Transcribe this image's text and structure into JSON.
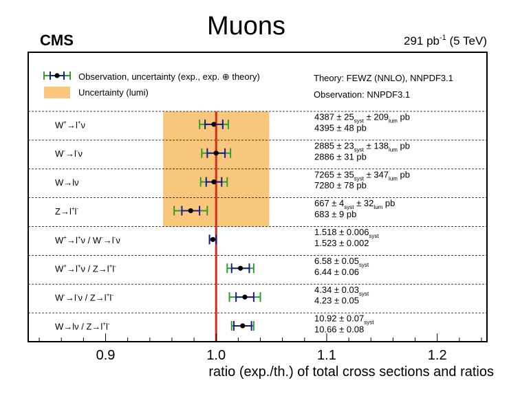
{
  "chart_data": {
    "type": "scatter",
    "title": "Muons",
    "experiment_label": "CMS",
    "lumi_prefix": "291 pb",
    "lumi_exp": "-1",
    "lumi_suffix": " (5 TeV)",
    "xlabel": "ratio (exp./th.) of total cross sections and ratios",
    "xlim": [
      0.83,
      1.245
    ],
    "xticks": [
      "0.9",
      "1.0",
      "1.1",
      "1.2"
    ],
    "xtick_values": [
      0.9,
      1.0,
      1.1,
      1.2
    ],
    "reference_line": 1.0,
    "legend": {
      "observation": "Observation, uncertainty (exp., exp. ⊕ theory)",
      "lumi": "Uncertainty (lumi)",
      "theory": "Theory: FEWZ (NNLO), NNPDF3.1",
      "observation_pdf": "Observation: NNPDF3.1"
    },
    "lumi_band": [
      0.952,
      1.048
    ],
    "lumi_band_rows": 4,
    "colors": {
      "lumi_band": "#f9c77b",
      "reference": "#d62a1e",
      "exp_error": "#1a1a8c",
      "total_error": "#2e9e2e",
      "point": "#000000"
    },
    "rows": [
      {
        "label": [
          {
            "t": "W"
          },
          {
            "t": "+",
            "s": "sup"
          },
          {
            "t": "→l"
          },
          {
            "t": "+",
            "s": "sup"
          },
          {
            "t": "ν"
          }
        ],
        "ratio": 0.998,
        "exp_err": 0.008,
        "tot_err": 0.013,
        "meas": [
          {
            "t": "4387 ± 25"
          },
          {
            "t": "syst",
            "s": "sub"
          },
          {
            "t": " ± 209"
          },
          {
            "t": "lum",
            "s": "sub"
          },
          {
            "t": " pb"
          }
        ],
        "theory": "4395 ± 48 pb"
      },
      {
        "label": [
          {
            "t": "W"
          },
          {
            "t": "-",
            "s": "sup"
          },
          {
            "t": "→l"
          },
          {
            "t": "-",
            "s": "sup"
          },
          {
            "t": "ν"
          }
        ],
        "ratio": 1.0,
        "exp_err": 0.008,
        "tot_err": 0.013,
        "meas": [
          {
            "t": "2885 ± 23"
          },
          {
            "t": "syst",
            "s": "sub"
          },
          {
            "t": " ± 138"
          },
          {
            "t": "lum",
            "s": "sub"
          },
          {
            "t": " pb"
          }
        ],
        "theory": "2886 ± 31 pb"
      },
      {
        "label": [
          {
            "t": "W→lν"
          }
        ],
        "ratio": 0.998,
        "exp_err": 0.007,
        "tot_err": 0.012,
        "meas": [
          {
            "t": "7265 ± 35"
          },
          {
            "t": "syst",
            "s": "sub"
          },
          {
            "t": " ± 347"
          },
          {
            "t": "lum",
            "s": "sub"
          },
          {
            "t": " pb"
          }
        ],
        "theory": "7280 ± 78 pb"
      },
      {
        "label": [
          {
            "t": "Z→l"
          },
          {
            "t": "+",
            "s": "sup"
          },
          {
            "t": "l"
          },
          {
            "t": "-",
            "s": "sup"
          }
        ],
        "ratio": 0.977,
        "exp_err": 0.008,
        "tot_err": 0.015,
        "meas": [
          {
            "t": "667 ± 4"
          },
          {
            "t": "syst",
            "s": "sub"
          },
          {
            "t": " ± 32"
          },
          {
            "t": "lum",
            "s": "sub"
          },
          {
            "t": " pb"
          }
        ],
        "theory": "683 ± 9 pb"
      },
      {
        "label": [
          {
            "t": "W"
          },
          {
            "t": "+",
            "s": "sup"
          },
          {
            "t": "→l"
          },
          {
            "t": "+",
            "s": "sup"
          },
          {
            "t": "ν / W"
          },
          {
            "t": "-",
            "s": "sup"
          },
          {
            "t": "→l"
          },
          {
            "t": "-",
            "s": "sup"
          },
          {
            "t": "ν"
          }
        ],
        "ratio": 0.997,
        "exp_err": 0.003,
        "tot_err": 0.003,
        "meas": [
          {
            "t": "1.518 ± 0.006"
          },
          {
            "t": "syst",
            "s": "sub"
          }
        ],
        "theory": "1.523 ± 0.002"
      },
      {
        "label": [
          {
            "t": "W"
          },
          {
            "t": "+",
            "s": "sup"
          },
          {
            "t": "→l"
          },
          {
            "t": "+",
            "s": "sup"
          },
          {
            "t": "ν / Z→l"
          },
          {
            "t": "+",
            "s": "sup"
          },
          {
            "t": "l"
          },
          {
            "t": "-",
            "s": "sup"
          }
        ],
        "ratio": 1.022,
        "exp_err": 0.008,
        "tot_err": 0.012,
        "meas": [
          {
            "t": "6.58 ± 0.05"
          },
          {
            "t": "syst",
            "s": "sub"
          }
        ],
        "theory": "6.44 ± 0.06"
      },
      {
        "label": [
          {
            "t": "W"
          },
          {
            "t": "-",
            "s": "sup"
          },
          {
            "t": "→l"
          },
          {
            "t": "-",
            "s": "sup"
          },
          {
            "t": "ν / Z→l"
          },
          {
            "t": "+",
            "s": "sup"
          },
          {
            "t": "l"
          },
          {
            "t": "-",
            "s": "sup"
          }
        ],
        "ratio": 1.026,
        "exp_err": 0.008,
        "tot_err": 0.014,
        "meas": [
          {
            "t": "4.34 ± 0.03"
          },
          {
            "t": "syst",
            "s": "sub"
          }
        ],
        "theory": "4.23 ± 0.05"
      },
      {
        "label": [
          {
            "t": "W→lν / Z→l"
          },
          {
            "t": "+",
            "s": "sup"
          },
          {
            "t": "l"
          },
          {
            "t": "-",
            "s": "sup"
          }
        ],
        "ratio": 1.024,
        "exp_err": 0.008,
        "tot_err": 0.01,
        "meas": [
          {
            "t": "10.92 ±  0.07"
          },
          {
            "t": "syst",
            "s": "sub"
          }
        ],
        "theory": "10.66 ± 0.08"
      }
    ]
  }
}
